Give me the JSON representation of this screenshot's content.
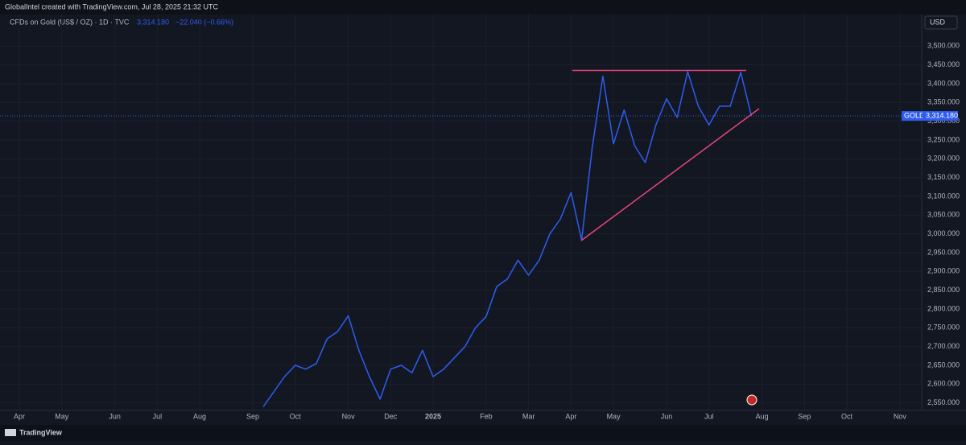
{
  "header": {
    "text": "GlobalIntel created with TradingView.com, Jul 28, 2025 21:32 UTC"
  },
  "footer": {
    "brand": "TradingView"
  },
  "chart_data": {
    "type": "line",
    "symbol": "CFDs on Gold (US$ / OZ) · 1D · TVC",
    "change": "−22.040 (−0.66%)",
    "currency": "USD",
    "ticker": "GOLD",
    "last_value": {
      "value": 3314.18,
      "label": "3,314.180"
    },
    "categories": [
      "Apr",
      null,
      null,
      null,
      "May",
      null,
      null,
      null,
      null,
      "Jun",
      null,
      null,
      null,
      "Jul",
      null,
      null,
      null,
      "Aug",
      null,
      null,
      null,
      null,
      "Sep",
      null,
      null,
      null,
      "Oct",
      null,
      null,
      null,
      null,
      "Nov",
      null,
      null,
      null,
      "Dec",
      null,
      null,
      null,
      "2025",
      null,
      null,
      null,
      null,
      "Feb",
      null,
      null,
      null,
      "Mar",
      null,
      null,
      null,
      "Apr",
      null,
      null,
      null,
      "May",
      null,
      null,
      null,
      null,
      "Jun",
      null,
      null,
      null,
      "Jul",
      null,
      null,
      null,
      null,
      "Aug",
      null,
      null,
      null,
      "Sep",
      null,
      null,
      null,
      "Oct",
      null,
      null,
      null,
      null,
      "Nov",
      null
    ],
    "series": [
      {
        "name": "GOLD",
        "color": "#2f5cf0",
        "values": [
          null,
          null,
          null,
          null,
          null,
          null,
          null,
          null,
          null,
          null,
          null,
          null,
          null,
          null,
          null,
          null,
          null,
          null,
          null,
          null,
          null,
          null,
          null,
          2540,
          2580,
          2620,
          2650,
          2640,
          2655,
          2720,
          2740,
          2782,
          2690,
          2620,
          2560,
          2640,
          2650,
          2630,
          2690,
          2620,
          2640,
          2670,
          2700,
          2750,
          2780,
          2860,
          2880,
          2930,
          2890,
          2930,
          3000,
          3040,
          3110,
          2983,
          3230,
          3420,
          3240,
          3330,
          3235,
          3190,
          3290,
          3360,
          3310,
          3432,
          3340,
          3290,
          3340,
          3340,
          3430,
          3314,
          null,
          null,
          null,
          null,
          null,
          null,
          null,
          null,
          null,
          null,
          null,
          null,
          null,
          null,
          null
        ]
      }
    ],
    "ylim": [
      2530,
      3580
    ],
    "yticks": [
      {
        "value": 2550,
        "label": "2,550.000"
      },
      {
        "value": 2600,
        "label": "2,600.000"
      },
      {
        "value": 2650,
        "label": "2,650.000"
      },
      {
        "value": 2700,
        "label": "2,700.000"
      },
      {
        "value": 2750,
        "label": "2,750.000"
      },
      {
        "value": 2800,
        "label": "2,800.000"
      },
      {
        "value": 2850,
        "label": "2,850.000"
      },
      {
        "value": 2900,
        "label": "2,900.000"
      },
      {
        "value": 2950,
        "label": "2,950.000"
      },
      {
        "value": 3000,
        "label": "3,000.000"
      },
      {
        "value": 3050,
        "label": "3,050.000"
      },
      {
        "value": 3100,
        "label": "3,100.000"
      },
      {
        "value": 3150,
        "label": "3,150.000"
      },
      {
        "value": 3200,
        "label": "3,200.000"
      },
      {
        "value": 3250,
        "label": "3,250.000"
      },
      {
        "value": 3300,
        "label": "3,300.000"
      },
      {
        "value": 3350,
        "label": "3,350.000"
      },
      {
        "value": 3400,
        "label": "3,400.000"
      },
      {
        "value": 3450,
        "label": "3,450.000"
      },
      {
        "value": 3500,
        "label": "3,500.000"
      }
    ],
    "grid": true
  }
}
